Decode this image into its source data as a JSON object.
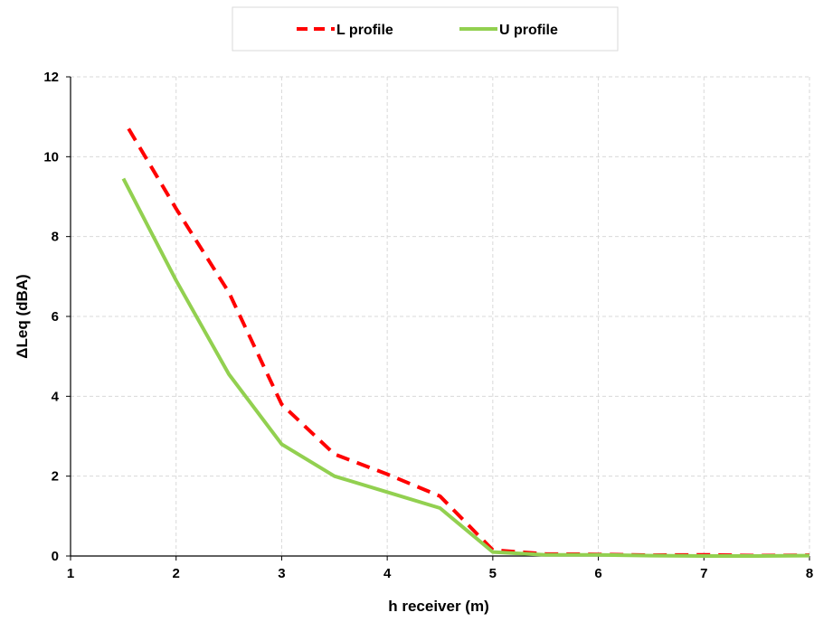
{
  "chart_data": {
    "type": "line",
    "title": "",
    "xlabel": "h receiver (m)",
    "ylabel": "ΔLeq (dBA)",
    "xlim": [
      1,
      8
    ],
    "ylim": [
      0,
      12
    ],
    "xticks": [
      1,
      2,
      3,
      4,
      5,
      6,
      7,
      8
    ],
    "yticks": [
      0,
      2,
      4,
      6,
      8,
      10,
      12
    ],
    "grid": true,
    "legend_position": "top-center",
    "series": [
      {
        "name": "L profile",
        "color": "#ff0000",
        "style": "dashed",
        "x": [
          1.55,
          2.0,
          2.5,
          3.0,
          3.5,
          4.0,
          4.5,
          5.0,
          5.5,
          6.0,
          6.5,
          7.0,
          7.5,
          8.0
        ],
        "y": [
          10.7,
          8.7,
          6.6,
          3.8,
          2.55,
          2.05,
          1.5,
          0.15,
          0.05,
          0.04,
          0.02,
          0.03,
          0.01,
          0.02
        ]
      },
      {
        "name": "U profile",
        "color": "#92d050",
        "style": "solid",
        "x": [
          1.5,
          2.0,
          2.5,
          3.0,
          3.5,
          4.0,
          4.5,
          5.0,
          5.5,
          6.0,
          6.5,
          7.0,
          7.5,
          8.0
        ],
        "y": [
          9.45,
          6.9,
          4.55,
          2.8,
          2.0,
          1.6,
          1.2,
          0.1,
          0.03,
          0.03,
          0.01,
          0.0,
          0.0,
          0.01
        ]
      }
    ]
  }
}
